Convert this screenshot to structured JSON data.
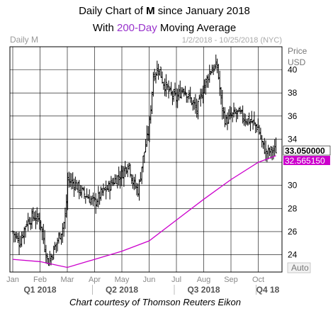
{
  "title": {
    "line1_prefix": "Daily Chart of ",
    "ticker": "M",
    "line1_suffix": " since January 2018",
    "line2_prefix": "With ",
    "highlight": "200-Day",
    "line2_suffix": " Moving Average"
  },
  "panel": {
    "label": "Daily M",
    "date_range": "1/2/2018 - 10/25/2018 (NYC)",
    "price_label": "Price",
    "currency": "USD",
    "auto_label": "Auto"
  },
  "footer": "Chart courtesy of Thomson Reuters Eikon",
  "colors": {
    "price_bars": "#000000",
    "moving_average": "#cc00cc",
    "highlight_text": "#9933cc",
    "grid": "#000000"
  },
  "chart_data": {
    "type": "line",
    "ylim": [
      22.5,
      42
    ],
    "y_ticks": [
      "24",
      "26",
      "28",
      "30",
      "32",
      "34",
      "36",
      "38",
      "40"
    ],
    "x_ticks": [
      "Jan",
      "Feb",
      "Mar",
      "Apr",
      "May",
      "Jun",
      "Jul",
      "Aug",
      "Sep",
      "Oct"
    ],
    "quarters": [
      "Q1 2018",
      "Q2 2018",
      "Q3 2018",
      "Q4 18"
    ],
    "last_price_tag": "33.050000",
    "ma_tag": "32.565150",
    "series": [
      {
        "name": "M",
        "style": "daily OHLC bars",
        "points": [
          {
            "m": 0.0,
            "v": 26.0
          },
          {
            "m": 0.25,
            "v": 25.0
          },
          {
            "m": 0.5,
            "v": 26.8
          },
          {
            "m": 0.75,
            "v": 27.3
          },
          {
            "m": 1.0,
            "v": 27.0
          },
          {
            "m": 1.15,
            "v": 25.0
          },
          {
            "m": 1.3,
            "v": 23.3
          },
          {
            "m": 1.5,
            "v": 24.4
          },
          {
            "m": 1.7,
            "v": 25.6
          },
          {
            "m": 1.85,
            "v": 26.5
          },
          {
            "m": 1.95,
            "v": 27.5
          },
          {
            "m": 2.0,
            "v": 30.5
          },
          {
            "m": 2.25,
            "v": 30.2
          },
          {
            "m": 2.5,
            "v": 29.5
          },
          {
            "m": 2.75,
            "v": 29.0
          },
          {
            "m": 3.0,
            "v": 28.5
          },
          {
            "m": 3.25,
            "v": 29.3
          },
          {
            "m": 3.5,
            "v": 29.8
          },
          {
            "m": 3.75,
            "v": 30.5
          },
          {
            "m": 4.0,
            "v": 31.0
          },
          {
            "m": 4.25,
            "v": 32.0
          },
          {
            "m": 4.4,
            "v": 30.3
          },
          {
            "m": 4.6,
            "v": 29.5
          },
          {
            "m": 4.75,
            "v": 32.0
          },
          {
            "m": 5.0,
            "v": 35.0
          },
          {
            "m": 5.15,
            "v": 39.5
          },
          {
            "m": 5.35,
            "v": 40.2
          },
          {
            "m": 5.5,
            "v": 39.0
          },
          {
            "m": 5.75,
            "v": 38.0
          },
          {
            "m": 6.0,
            "v": 37.5
          },
          {
            "m": 6.25,
            "v": 38.5
          },
          {
            "m": 6.5,
            "v": 37.5
          },
          {
            "m": 6.75,
            "v": 36.5
          },
          {
            "m": 7.0,
            "v": 38.5
          },
          {
            "m": 7.25,
            "v": 40.0
          },
          {
            "m": 7.5,
            "v": 40.3
          },
          {
            "m": 7.65,
            "v": 37.0
          },
          {
            "m": 7.8,
            "v": 35.5
          },
          {
            "m": 8.0,
            "v": 36.0
          },
          {
            "m": 8.25,
            "v": 36.3
          },
          {
            "m": 8.5,
            "v": 35.8
          },
          {
            "m": 8.75,
            "v": 35.5
          },
          {
            "m": 9.0,
            "v": 35.0
          },
          {
            "m": 9.15,
            "v": 33.5
          },
          {
            "m": 9.3,
            "v": 32.8
          },
          {
            "m": 9.5,
            "v": 33.0
          },
          {
            "m": 9.65,
            "v": 33.05
          }
        ]
      },
      {
        "name": "200-Day",
        "style": "line",
        "points": [
          {
            "m": 0.0,
            "v": 23.6
          },
          {
            "m": 1.0,
            "v": 23.4
          },
          {
            "m": 2.0,
            "v": 22.9
          },
          {
            "m": 3.0,
            "v": 23.6
          },
          {
            "m": 4.0,
            "v": 24.3
          },
          {
            "m": 5.0,
            "v": 25.2
          },
          {
            "m": 6.0,
            "v": 27.0
          },
          {
            "m": 7.0,
            "v": 28.8
          },
          {
            "m": 8.0,
            "v": 30.5
          },
          {
            "m": 9.0,
            "v": 32.0
          },
          {
            "m": 9.65,
            "v": 32.57
          }
        ]
      }
    ]
  }
}
